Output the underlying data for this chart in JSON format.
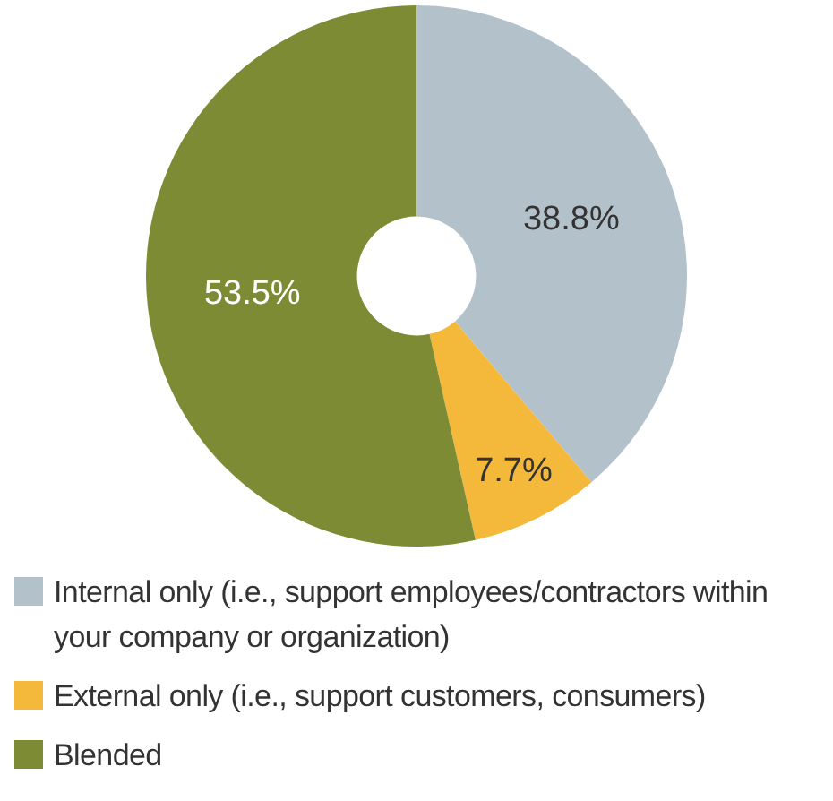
{
  "chart_data": {
    "type": "donut",
    "categories": [
      "Internal only (i.e., support employees/contractors within your company or organization)",
      "External only (i.e., support customers, consumers)",
      "Blended"
    ],
    "values": [
      38.8,
      7.7,
      53.5
    ],
    "colors": [
      "#b3c1cb",
      "#f4b83a",
      "#7d8b35"
    ],
    "value_labels": [
      "38.8%",
      "7.7%",
      "53.5%"
    ],
    "legend": "bottom"
  }
}
